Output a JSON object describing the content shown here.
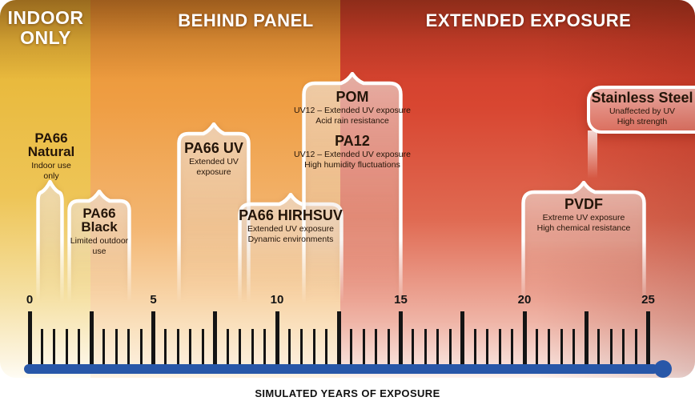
{
  "zones": [
    {
      "label": "INDOOR\nONLY"
    },
    {
      "label": "BEHIND PANEL"
    },
    {
      "label": "EXTENDED EXPOSURE"
    }
  ],
  "bars": [
    {
      "name": "PA66\nNatural",
      "desc": "Indoor use\nonly"
    },
    {
      "name": "PA66\nBlack",
      "desc": "Limited outdoor\nuse"
    },
    {
      "name": "PA66 UV",
      "desc": "Extended UV\nexposure"
    },
    {
      "name": "PA66 HIRHSUV",
      "desc": "Extended UV exposure\nDynamic environments"
    },
    {
      "name": "POM",
      "desc": "UV12 – Extended UV exposure\nAcid rain resistance"
    },
    {
      "name": "PA12",
      "desc": "UV12 – Extended UV exposure\nHigh humidity fluctuations"
    },
    {
      "name": "PVDF",
      "desc": "Extreme UV exposure\nHigh chemical resistance"
    },
    {
      "name": "Stainless Steel",
      "desc": "Unaffected by UV\nHigh strength"
    }
  ],
  "axis": {
    "caption": "SIMULATED YEARS OF EXPOSURE",
    "min": 0,
    "max": 25,
    "minor_step": 0.5,
    "major_step": 2.5,
    "label_step": 5,
    "labels": [
      "0",
      "5",
      "10",
      "15",
      "20",
      "25"
    ]
  },
  "colors": {
    "accent_blue": "#2857a8",
    "zone_yellow": "#e9ba3e",
    "zone_orange": "#ef9e44",
    "zone_red": "#d84631",
    "bar_outline": "#ffffff",
    "tick": "#141414",
    "text_dark": "#241509",
    "header_text": "#ffffff"
  },
  "chart_data": {
    "type": "timeline",
    "title": "",
    "xlabel": "SIMULATED YEARS OF EXPOSURE",
    "x_range": [
      0,
      25
    ],
    "grid": false,
    "zones": [
      {
        "label": "INDOOR ONLY",
        "from": 0,
        "to": 2.5,
        "color": "#e9ba3e"
      },
      {
        "label": "BEHIND PANEL",
        "from": 2.5,
        "to": 12.5,
        "color": "#ef9e44"
      },
      {
        "label": "EXTENDED EXPOSURE",
        "from": 12.5,
        "to": 27,
        "color": "#d84631"
      }
    ],
    "materials": [
      {
        "name": "PA66 Natural",
        "years_from": 0.3,
        "years_to": 1.4,
        "notes": "Indoor use only"
      },
      {
        "name": "PA66 Black",
        "years_from": 1.5,
        "years_to": 4,
        "notes": "Limited outdoor use"
      },
      {
        "name": "PA66 UV",
        "years_from": 6,
        "years_to": 9,
        "notes": "Extended UV exposure"
      },
      {
        "name": "PA66 HIRHSUV",
        "years_from": 8.5,
        "years_to": 12.5,
        "notes": "Extended UV exposure; Dynamic environments"
      },
      {
        "name": "POM",
        "years_from": 11,
        "years_to": 15,
        "notes": "UV12 – Extended UV exposure; Acid rain resistance"
      },
      {
        "name": "PA12",
        "years_from": 11,
        "years_to": 15,
        "notes": "UV12 – Extended UV exposure; High humidity fluctuations"
      },
      {
        "name": "PVDF",
        "years_from": 20,
        "years_to": 25,
        "notes": "Extreme UV exposure; High chemical resistance"
      },
      {
        "name": "Stainless Steel",
        "years_from": 22.5,
        "years_to": 27,
        "notes": "Unaffected by UV; High strength"
      }
    ]
  }
}
